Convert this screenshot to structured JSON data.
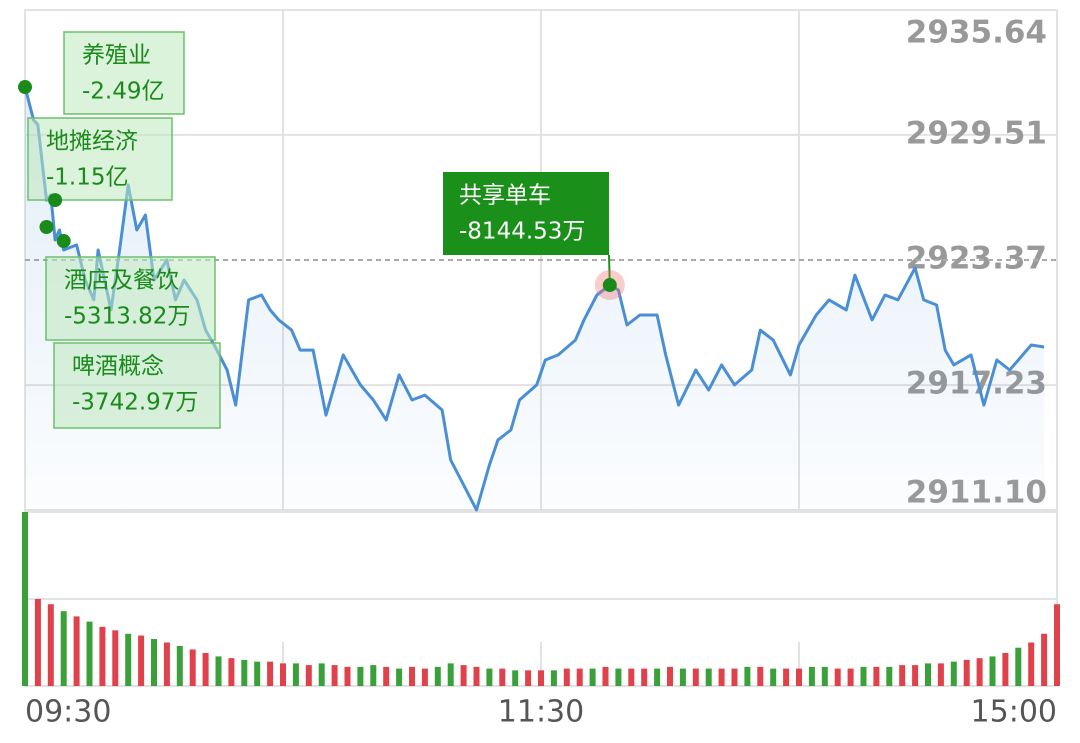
{
  "chart_data": {
    "type": "line",
    "color": "#4a8fd6",
    "xlim": [
      0,
      240
    ],
    "xticks": [
      {
        "value": 0,
        "label": "09:30"
      },
      {
        "value": 60,
        "label": null
      },
      {
        "value": 120,
        "label": "11:30"
      },
      {
        "value": 180,
        "label": null
      },
      {
        "value": 240,
        "label": "15:00"
      }
    ],
    "ylim": [
      {
        "value": 2911.1,
        "label": "2911.10"
      },
      2935.64
    ],
    "yticks": [
      2935.64,
      2929.51,
      2923.37,
      2917.23,
      {
        "value": 2911.1,
        "label": "2911.10"
      }
    ],
    "reference_line": 2923.37,
    "grid": true,
    "x": [
      0,
      2,
      3,
      5,
      6,
      7,
      8,
      9,
      12,
      14,
      16,
      17,
      20,
      22,
      24,
      26,
      28,
      30,
      33,
      35,
      37,
      40,
      42,
      44,
      47,
      49,
      52,
      55,
      57,
      59,
      62,
      64,
      67,
      70,
      74,
      78,
      81,
      84,
      87,
      90,
      93,
      97,
      99,
      102,
      105,
      108,
      110,
      113,
      115,
      119,
      121,
      124,
      128,
      130,
      133,
      136,
      138,
      140,
      143,
      147,
      149,
      152,
      156,
      159,
      162,
      165,
      169,
      171,
      174,
      178,
      180,
      184,
      187,
      191,
      193,
      197,
      200,
      203,
      207,
      209,
      212,
      214,
      216,
      220,
      223,
      226,
      229,
      234,
      237
    ],
    "values": [
      2931.86,
      2930.24,
      2930.0,
      2926.31,
      2926.56,
      2924.35,
      2924.84,
      2923.86,
      2924.11,
      2922.39,
      2921.41,
      2923.86,
      2920.92,
      2923.86,
      2927.05,
      2924.84,
      2925.58,
      2922.39,
      2923.37,
      2921.41,
      2922.39,
      2921.41,
      2919.93,
      2919.2,
      2917.97,
      2916.25,
      2921.41,
      2921.65,
      2920.92,
      2920.43,
      2919.93,
      2918.95,
      2918.95,
      2915.76,
      2918.71,
      2917.24,
      2916.5,
      2915.52,
      2917.73,
      2916.5,
      2916.74,
      2916.01,
      2913.55,
      2912.33,
      2911.1,
      2913.31,
      2914.54,
      2915.03,
      2916.5,
      2917.24,
      2918.46,
      2918.71,
      2919.44,
      2920.43,
      2921.65,
      2922.14,
      2921.9,
      2920.18,
      2920.67,
      2920.67,
      2918.71,
      2916.25,
      2917.97,
      2916.99,
      2918.22,
      2917.24,
      2917.97,
      2919.93,
      2919.44,
      2917.73,
      2919.2,
      2920.67,
      2921.41,
      2920.92,
      2922.63,
      2920.43,
      2921.65,
      2921.41,
      2922.98,
      2921.41,
      2921.16,
      2918.95,
      2918.22,
      2918.71,
      2916.25,
      2918.46,
      2917.97,
      2919.2,
      2919.1
    ],
    "annotations": [
      {
        "label": "养殖业",
        "text": "-2.49亿",
        "x": 0,
        "y": 2931.86
      },
      {
        "label": "地摊经济",
        "text": "-1.15亿",
        "x": 7,
        "y": 2926.31
      },
      {
        "label": "酒店及餐饮",
        "text": "-5313.82万",
        "x": 5,
        "y": 2924.99
      },
      {
        "label": "啤酒概念",
        "text": "-3742.97万",
        "x": 9,
        "y": 2924.3
      },
      {
        "label": "共享单车",
        "text": "-8144.53万",
        "x": 136,
        "y": 2922.14,
        "highlight": true
      }
    ],
    "volume": {
      "ylim": [
        0,
        100
      ],
      "up_color": "#e0424b",
      "down_color": "#3aa13a",
      "x": [
        0,
        3,
        6,
        9,
        12,
        15,
        18,
        21,
        24,
        27,
        30,
        33,
        36,
        39,
        42,
        45,
        48,
        51,
        54,
        57,
        60,
        63,
        66,
        69,
        72,
        75,
        78,
        81,
        84,
        87,
        90,
        93,
        96,
        99,
        102,
        105,
        108,
        111,
        114,
        117,
        120,
        123,
        126,
        129,
        132,
        135,
        138,
        141,
        144,
        147,
        150,
        153,
        156,
        159,
        162,
        165,
        168,
        171,
        174,
        177,
        180,
        183,
        186,
        189,
        192,
        195,
        198,
        201,
        204,
        207,
        210,
        213,
        216,
        219,
        222,
        225,
        228,
        231,
        234,
        237,
        240
      ],
      "values": [
        100,
        50,
        47,
        43,
        40,
        37,
        34,
        32,
        30,
        29,
        27,
        25,
        23,
        21,
        19,
        17,
        16,
        15,
        14,
        14,
        13,
        13,
        12,
        13,
        12,
        11,
        11,
        12,
        11,
        10,
        11,
        10,
        11,
        13,
        12,
        11,
        10,
        10,
        9,
        9,
        9,
        9,
        10,
        10,
        10,
        11,
        10,
        10,
        10,
        10,
        11,
        10,
        10,
        10,
        10,
        10,
        11,
        11,
        10,
        10,
        10,
        11,
        11,
        10,
        10,
        11,
        11,
        11,
        12,
        12,
        13,
        13,
        14,
        15,
        16,
        17,
        19,
        22,
        25,
        30,
        47
      ],
      "up": [
        false,
        true,
        true,
        false,
        true,
        false,
        true,
        true,
        false,
        true,
        false,
        true,
        false,
        true,
        true,
        false,
        true,
        false,
        false,
        true,
        true,
        false,
        true,
        false,
        true,
        true,
        false,
        false,
        true,
        false,
        true,
        true,
        false,
        false,
        true,
        true,
        false,
        true,
        false,
        true,
        true,
        false,
        true,
        true,
        false,
        true,
        false,
        true,
        true,
        false,
        true,
        false,
        true,
        false,
        true,
        true,
        false,
        true,
        false,
        true,
        true,
        false,
        false,
        true,
        true,
        false,
        true,
        false,
        true,
        true,
        false,
        true,
        false,
        true,
        true,
        false,
        true,
        false,
        true,
        true,
        true
      ]
    }
  }
}
